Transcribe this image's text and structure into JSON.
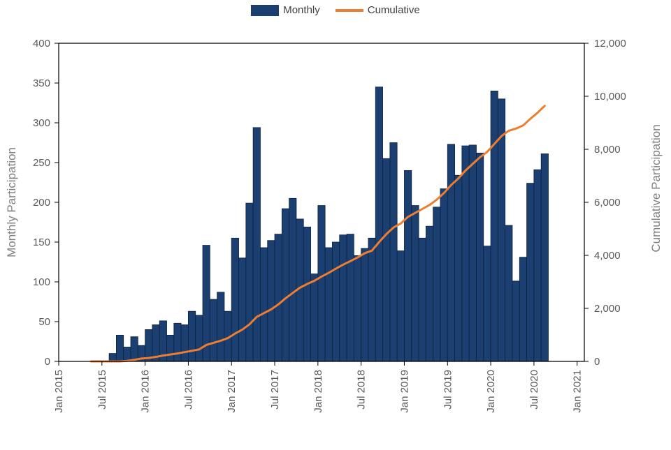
{
  "chart_data": {
    "type": "bar",
    "title": "",
    "legend": {
      "placement": "top-center",
      "entries": [
        {
          "label": "Monthly",
          "kind": "bar"
        },
        {
          "label": "Cumulative",
          "kind": "line"
        }
      ]
    },
    "colors": {
      "bar": "#1a3f70",
      "bar_edge": "#0d2240",
      "line": "#ed7d31",
      "axis": "#000000"
    },
    "x_axis": {
      "ticks": [
        "Jan 2015",
        "Jul 2015",
        "Jan 2016",
        "Jul 2016",
        "Jan 2017",
        "Jul 2017",
        "Jan 2018",
        "Jul 2018",
        "Jan 2019",
        "Jul 2019",
        "Jan 2020",
        "Jul 2020",
        "Jan 2021"
      ],
      "range": [
        "2015-01",
        "2021-02"
      ]
    },
    "y_axis_left": {
      "label": "Monthly Participation",
      "ylim": [
        0,
        400
      ],
      "ticks": [
        "0",
        "50",
        "100",
        "150",
        "200",
        "250",
        "300",
        "350",
        "400"
      ]
    },
    "y_axis_right": {
      "label": "Cumulative Participation",
      "ylim": [
        0,
        12000
      ],
      "ticks": [
        "0",
        "2,000",
        "4,000",
        "6,000",
        "8,000",
        "10,000",
        "12,000"
      ]
    },
    "categories": [
      "2015-01",
      "2015-02",
      "2015-03",
      "2015-04",
      "2015-05",
      "2015-06",
      "2015-07",
      "2015-08",
      "2015-09",
      "2015-10",
      "2015-11",
      "2015-12",
      "2016-01",
      "2016-02",
      "2016-03",
      "2016-04",
      "2016-05",
      "2016-06",
      "2016-07",
      "2016-08",
      "2016-09",
      "2016-10",
      "2016-11",
      "2016-12",
      "2017-01",
      "2017-02",
      "2017-03",
      "2017-04",
      "2017-05",
      "2017-06",
      "2017-07",
      "2017-08",
      "2017-09",
      "2017-10",
      "2017-11",
      "2017-12",
      "2018-01",
      "2018-02",
      "2018-03",
      "2018-04",
      "2018-05",
      "2018-06",
      "2018-07",
      "2018-08",
      "2018-09",
      "2018-10",
      "2018-11",
      "2018-12",
      "2019-01",
      "2019-02",
      "2019-03",
      "2019-04",
      "2019-05",
      "2019-06",
      "2019-07",
      "2019-08",
      "2019-09",
      "2019-10",
      "2019-11",
      "2019-12",
      "2020-01",
      "2020-02",
      "2020-03",
      "2020-04",
      "2020-05",
      "2020-06",
      "2020-07",
      "2020-08"
    ],
    "series": [
      {
        "name": "Monthly",
        "type": "bar",
        "axis": "left",
        "values": [
          0,
          0,
          0,
          0,
          0,
          0,
          0,
          10,
          33,
          18,
          31,
          20,
          40,
          46,
          51,
          33,
          48,
          46,
          63,
          58,
          146,
          78,
          87,
          63,
          155,
          130,
          199,
          294,
          143,
          152,
          160,
          192,
          205,
          179,
          169,
          110,
          196,
          143,
          150,
          159,
          160,
          133,
          142,
          155,
          345,
          255,
          275,
          139,
          240,
          196,
          155,
          170,
          194,
          217,
          273,
          234,
          271,
          272,
          262,
          145,
          340,
          330,
          171,
          101,
          131,
          224,
          241,
          261
        ]
      },
      {
        "name": "Cumulative",
        "type": "line",
        "axis": "right",
        "x": [
          "2015-05",
          "2015-06",
          "2015-07",
          "2015-08",
          "2015-09",
          "2015-10",
          "2015-11",
          "2015-12",
          "2016-01",
          "2016-02",
          "2016-03",
          "2016-04",
          "2016-05",
          "2016-06",
          "2016-07",
          "2016-08",
          "2016-09",
          "2016-10",
          "2016-11",
          "2016-12",
          "2017-01",
          "2017-02",
          "2017-03",
          "2017-04",
          "2017-05",
          "2017-06",
          "2017-07",
          "2017-08",
          "2017-09",
          "2017-10",
          "2017-11",
          "2017-12",
          "2018-01",
          "2018-02",
          "2018-03",
          "2018-04",
          "2018-05",
          "2018-06",
          "2018-07",
          "2018-08",
          "2018-09",
          "2018-10",
          "2018-11",
          "2018-12",
          "2019-01",
          "2019-02",
          "2019-03",
          "2019-04",
          "2019-05",
          "2019-06",
          "2019-07",
          "2019-08",
          "2019-09",
          "2019-10",
          "2019-11",
          "2019-12",
          "2020-01",
          "2020-02",
          "2020-03",
          "2020-04",
          "2020-05",
          "2020-06",
          "2020-07",
          "2020-08"
        ],
        "values": [
          0,
          0,
          0,
          0,
          0,
          20,
          60,
          110,
          130,
          170,
          220,
          260,
          300,
          350,
          400,
          450,
          620,
          700,
          780,
          880,
          1050,
          1200,
          1400,
          1680,
          1820,
          1960,
          2150,
          2380,
          2580,
          2780,
          2920,
          3040,
          3200,
          3340,
          3500,
          3650,
          3780,
          3920,
          4080,
          4180,
          4500,
          4800,
          5050,
          5200,
          5450,
          5600,
          5750,
          5900,
          6100,
          6350,
          6650,
          6900,
          7200,
          7450,
          7700,
          7900,
          8200,
          8500,
          8700,
          8780,
          8900,
          9150,
          9380,
          9640
        ]
      }
    ]
  }
}
